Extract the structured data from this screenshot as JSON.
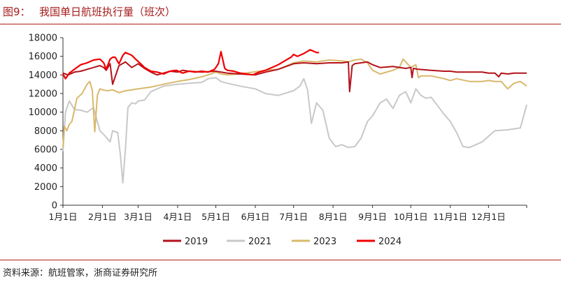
{
  "figure": {
    "label": "图9：",
    "title": "我国单日航班执行量（班次）"
  },
  "source": "资料来源：航班管家，浙商证券研究所",
  "colors": {
    "2019": "#b3121b",
    "2021": "#c8c8c8",
    "2023": "#d9b86c",
    "2024": "#f00000",
    "axis": "#333333",
    "rule": "#b0201a"
  },
  "chart_data": {
    "type": "line",
    "title": "",
    "xlabel": "",
    "ylabel": "",
    "ylim": [
      0,
      18000
    ],
    "yticks": [
      0,
      2000,
      4000,
      6000,
      8000,
      10000,
      12000,
      14000,
      16000,
      18000
    ],
    "x_unit": "day_of_year",
    "xlim": [
      1,
      365
    ],
    "xticks": [
      {
        "day": 1,
        "label": "1月1日"
      },
      {
        "day": 32,
        "label": "2月1日"
      },
      {
        "day": 60,
        "label": "3月1日"
      },
      {
        "day": 91,
        "label": "4月1日"
      },
      {
        "day": 121,
        "label": "5月1日"
      },
      {
        "day": 152,
        "label": "6月1日"
      },
      {
        "day": 182,
        "label": "7月1日"
      },
      {
        "day": 213,
        "label": "8月1日"
      },
      {
        "day": 244,
        "label": "9月1日"
      },
      {
        "day": 274,
        "label": "10月1日"
      },
      {
        "day": 305,
        "label": "11月1日"
      },
      {
        "day": 335,
        "label": "12月1日"
      }
    ],
    "grid": false,
    "legend_position": "bottom",
    "series": [
      {
        "name": "2019",
        "x": [
          1,
          5,
          10,
          15,
          20,
          25,
          30,
          33,
          35,
          38,
          40,
          45,
          50,
          55,
          60,
          65,
          70,
          75,
          80,
          85,
          91,
          95,
          100,
          110,
          121,
          125,
          130,
          140,
          152,
          160,
          170,
          182,
          190,
          200,
          210,
          220,
          225,
          226,
          228,
          230,
          240,
          244,
          250,
          260,
          270,
          274,
          275,
          276,
          280,
          290,
          300,
          305,
          310,
          320,
          330,
          335,
          340,
          343,
          345,
          350,
          355,
          360,
          365
        ],
        "y": [
          14200,
          14000,
          14300,
          14400,
          14600,
          14800,
          15000,
          14800,
          14500,
          15200,
          13000,
          15000,
          15400,
          14800,
          15200,
          14700,
          14300,
          14000,
          14200,
          14400,
          14300,
          14500,
          14400,
          14300,
          14400,
          14300,
          14200,
          14100,
          14000,
          14300,
          14600,
          15200,
          15300,
          15200,
          15300,
          15300,
          15400,
          12200,
          15000,
          15200,
          15400,
          15100,
          14800,
          14900,
          14700,
          14800,
          13700,
          14700,
          14600,
          14500,
          14400,
          14400,
          14300,
          14300,
          14300,
          14200,
          14200,
          13800,
          14200,
          14100,
          14200,
          14200,
          14200
        ]
      },
      {
        "name": "2021",
        "x": [
          1,
          3,
          6,
          10,
          15,
          20,
          25,
          30,
          33,
          35,
          38,
          40,
          44,
          46,
          48,
          50,
          52,
          55,
          58,
          60,
          65,
          70,
          80,
          91,
          100,
          110,
          115,
          121,
          125,
          130,
          140,
          152,
          160,
          170,
          182,
          187,
          190,
          193,
          196,
          200,
          205,
          210,
          215,
          220,
          225,
          230,
          235,
          240,
          244,
          250,
          255,
          260,
          265,
          270,
          274,
          278,
          282,
          286,
          290,
          300,
          305,
          310,
          315,
          320,
          330,
          335,
          340,
          350,
          360,
          365
        ],
        "y": [
          5800,
          10000,
          11200,
          10300,
          10200,
          10000,
          10500,
          8000,
          7600,
          7300,
          6800,
          8000,
          7800,
          5500,
          2400,
          6000,
          10500,
          11000,
          10900,
          11200,
          11300,
          12200,
          12800,
          13000,
          13100,
          13200,
          13600,
          13700,
          13300,
          13100,
          12800,
          12500,
          12000,
          11800,
          12300,
          12800,
          13600,
          12400,
          8800,
          11000,
          10200,
          7200,
          6300,
          6500,
          6200,
          6300,
          7200,
          9000,
          9600,
          11000,
          11400,
          10400,
          11800,
          12200,
          11000,
          12500,
          11800,
          11500,
          11600,
          9800,
          9000,
          7800,
          6300,
          6200,
          6800,
          7400,
          8000,
          8100,
          8300,
          10800
        ]
      },
      {
        "name": "2023",
        "x": [
          1,
          2,
          4,
          6,
          8,
          12,
          16,
          20,
          22,
          24,
          26,
          28,
          30,
          32,
          36,
          40,
          45,
          50,
          55,
          60,
          65,
          70,
          80,
          91,
          100,
          110,
          115,
          121,
          125,
          130,
          140,
          150,
          160,
          170,
          182,
          190,
          200,
          210,
          220,
          225,
          230,
          235,
          240,
          244,
          250,
          260,
          265,
          268,
          270,
          274,
          278,
          280,
          282,
          290,
          300,
          305,
          310,
          320,
          330,
          335,
          340,
          345,
          350,
          355,
          360,
          365
        ],
        "y": [
          6200,
          8500,
          8000,
          8700,
          9000,
          11500,
          12000,
          13000,
          13300,
          12400,
          7900,
          11800,
          12500,
          12400,
          12300,
          12400,
          12100,
          12300,
          12400,
          12500,
          12600,
          12700,
          13000,
          13300,
          13500,
          13800,
          14000,
          14300,
          14100,
          14000,
          14100,
          14300,
          14500,
          14600,
          15300,
          15500,
          15400,
          15600,
          15500,
          15400,
          15600,
          15700,
          15300,
          14500,
          14100,
          14500,
          14800,
          15700,
          15400,
          14800,
          15100,
          13700,
          13900,
          13900,
          13600,
          13400,
          13600,
          13300,
          13300,
          13400,
          13300,
          13300,
          12500,
          13100,
          13300,
          12800
        ]
      },
      {
        "name": "2024",
        "x": [
          1,
          3,
          6,
          10,
          15,
          20,
          25,
          30,
          33,
          35,
          38,
          40,
          42,
          45,
          48,
          50,
          55,
          58,
          62,
          65,
          70,
          75,
          80,
          85,
          90,
          95,
          100,
          105,
          110,
          115,
          120,
          123,
          125,
          126,
          127,
          128,
          130,
          135,
          140,
          145,
          150,
          155,
          160,
          165,
          170,
          175,
          180,
          182,
          185,
          190,
          195,
          200,
          202
        ],
        "y": [
          14100,
          13600,
          14200,
          14600,
          15100,
          15300,
          15600,
          15700,
          15300,
          14600,
          15700,
          15900,
          15900,
          15200,
          16100,
          16400,
          16100,
          15700,
          15200,
          14800,
          14400,
          14300,
          14100,
          14400,
          14500,
          14200,
          14400,
          14300,
          14400,
          14300,
          14600,
          15200,
          16500,
          15900,
          15300,
          14700,
          14500,
          14400,
          14200,
          14100,
          14000,
          14300,
          14500,
          14800,
          15100,
          15500,
          15900,
          16200,
          16000,
          16300,
          16700,
          16400,
          16400
        ]
      }
    ]
  }
}
